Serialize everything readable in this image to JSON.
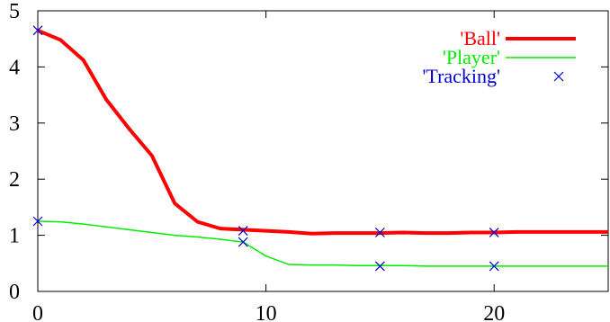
{
  "chart_data": {
    "type": "line",
    "title": "",
    "xlabel": "",
    "ylabel": "",
    "xlim": [
      0,
      25
    ],
    "ylim": [
      0,
      5
    ],
    "xticks": [
      0,
      10,
      20
    ],
    "yticks": [
      0,
      1,
      2,
      3,
      4,
      5
    ],
    "grid": false,
    "legend_position": "top-right",
    "series": [
      {
        "name": "'Ball'",
        "style": "line",
        "color": "#ff0000",
        "x": [
          0,
          1,
          2,
          3,
          4,
          5,
          6,
          7,
          8,
          9,
          10,
          11,
          12,
          13,
          14,
          15,
          16,
          17,
          18,
          19,
          20,
          21,
          22,
          23,
          24,
          25
        ],
        "y": [
          4.65,
          4.48,
          4.12,
          3.42,
          2.9,
          2.42,
          1.57,
          1.24,
          1.12,
          1.1,
          1.08,
          1.06,
          1.03,
          1.04,
          1.04,
          1.04,
          1.05,
          1.04,
          1.04,
          1.05,
          1.05,
          1.06,
          1.06,
          1.06,
          1.06,
          1.06
        ]
      },
      {
        "name": "'Player'",
        "style": "line",
        "color": "#00ee00",
        "x": [
          0,
          1,
          2,
          3,
          4,
          5,
          6,
          7,
          8,
          9,
          10,
          11,
          12,
          13,
          14,
          15,
          16,
          17,
          18,
          19,
          20,
          21,
          22,
          23,
          24,
          25
        ],
        "y": [
          1.25,
          1.24,
          1.2,
          1.15,
          1.1,
          1.05,
          1.0,
          0.97,
          0.93,
          0.88,
          0.63,
          0.48,
          0.47,
          0.47,
          0.46,
          0.46,
          0.46,
          0.45,
          0.45,
          0.45,
          0.45,
          0.45,
          0.45,
          0.45,
          0.45,
          0.45
        ]
      },
      {
        "name": "'Tracking'",
        "style": "points",
        "marker": "x",
        "color": "#0000cc",
        "x": [
          0,
          0,
          9,
          9,
          15,
          15,
          20,
          20
        ],
        "y": [
          4.65,
          1.25,
          1.08,
          0.88,
          1.05,
          0.45,
          1.05,
          0.45
        ]
      }
    ]
  }
}
